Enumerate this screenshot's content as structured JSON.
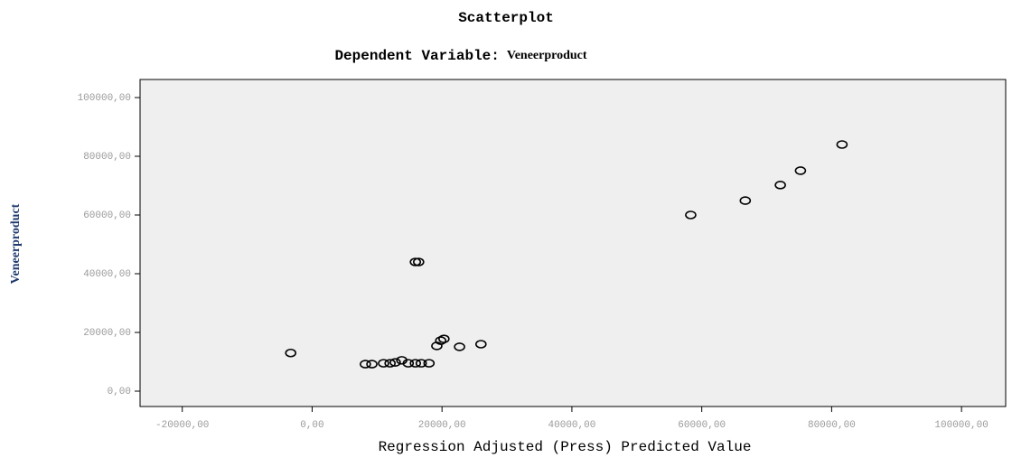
{
  "chart_data": {
    "type": "scatter",
    "title": "Scatterplot",
    "subtitle": "Dependent Variable:",
    "xlabel": "Regression Adjusted (Press) Predicted Value",
    "ylabel": "Veneerproduct",
    "x": [
      -3300,
      8200,
      9200,
      11000,
      12000,
      12800,
      13800,
      14800,
      15900,
      16800,
      18000,
      15900,
      16400,
      19200,
      19800,
      20300,
      22700,
      26000,
      58300,
      66700,
      72100,
      75200,
      81600
    ],
    "values": [
      13000,
      9200,
      9200,
      9500,
      9500,
      9800,
      10500,
      9500,
      9500,
      9500,
      9500,
      44000,
      44000,
      15400,
      17200,
      17800,
      15100,
      16000,
      60000,
      64900,
      70200,
      75100,
      84000
    ],
    "color": "#000000",
    "xlim": [
      -26500,
      106800
    ],
    "ylim": [
      -5230,
      106150
    ],
    "xticks": [
      {
        "value": -20000,
        "label": "-20000,00"
      },
      {
        "value": 0,
        "label": "0,00"
      },
      {
        "value": 20000,
        "label": "20000,00"
      },
      {
        "value": 40000,
        "label": "40000,00"
      },
      {
        "value": 60000,
        "label": "60000,00"
      },
      {
        "value": 80000,
        "label": "80000,00"
      },
      {
        "value": 100000,
        "label": "100000,00"
      }
    ],
    "yticks": [
      {
        "value": 0,
        "label": "0,00"
      },
      {
        "value": 20000,
        "label": "20000,00"
      },
      {
        "value": 40000,
        "label": "40000,00"
      },
      {
        "value": 60000,
        "label": "60000,00"
      },
      {
        "value": 80000,
        "label": "80000,00"
      },
      {
        "value": 100000,
        "label": "100000,00"
      }
    ]
  }
}
